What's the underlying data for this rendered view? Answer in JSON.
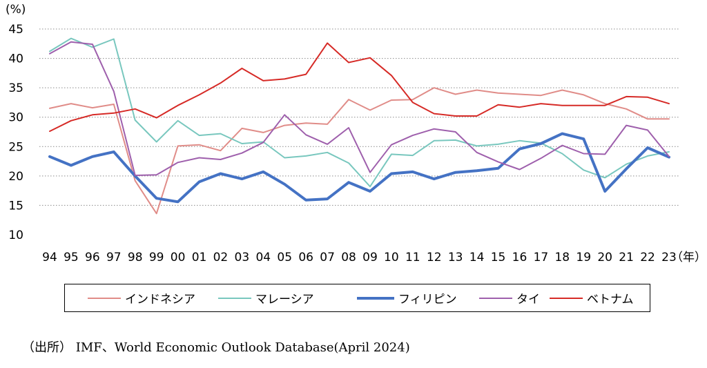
{
  "chart_data": {
    "type": "line",
    "y_unit_label": "(%)",
    "x_unit_label": "（年）",
    "ylim": [
      10,
      45
    ],
    "y_ticks": [
      10,
      15,
      20,
      25,
      30,
      35,
      40,
      45
    ],
    "grid": "horizontal dotted",
    "legend_position": "bottom",
    "categories": [
      "94",
      "95",
      "96",
      "97",
      "98",
      "99",
      "00",
      "01",
      "02",
      "03",
      "04",
      "05",
      "06",
      "07",
      "08",
      "09",
      "10",
      "11",
      "12",
      "13",
      "14",
      "15",
      "16",
      "17",
      "18",
      "19",
      "20",
      "21",
      "22",
      "23"
    ],
    "series": [
      {
        "name": "インドネシア",
        "color": "#e08c88",
        "values": [
          31.5,
          32.3,
          31.6,
          32.2,
          19.2,
          13.6,
          25.1,
          25.3,
          24.3,
          28.1,
          27.4,
          28.6,
          29.0,
          28.8,
          33.0,
          31.2,
          32.9,
          33.0,
          35.0,
          33.9,
          34.6,
          34.1,
          33.9,
          33.7,
          34.6,
          33.8,
          32.3,
          31.4,
          29.7,
          29.7
        ]
      },
      {
        "name": "マレーシア",
        "color": "#78c7be",
        "values": [
          41.2,
          43.4,
          41.9,
          43.3,
          29.5,
          25.8,
          29.4,
          26.9,
          27.2,
          25.5,
          25.8,
          23.1,
          23.4,
          24.0,
          22.2,
          18.2,
          23.7,
          23.5,
          26.0,
          26.1,
          25.1,
          25.4,
          26.0,
          25.6,
          23.8,
          21.0,
          19.7,
          22.0,
          23.4,
          24.1
        ]
      },
      {
        "name": "フィリピン",
        "color": "#4472c4",
        "values": [
          23.3,
          21.8,
          23.3,
          24.1,
          20.0,
          16.2,
          15.6,
          19.0,
          20.4,
          19.5,
          20.7,
          18.6,
          15.9,
          16.1,
          18.9,
          17.4,
          20.4,
          20.7,
          19.5,
          20.6,
          20.9,
          21.3,
          24.6,
          25.5,
          27.2,
          26.3,
          17.4,
          21.2,
          24.8,
          23.2
        ]
      },
      {
        "name": "タイ",
        "color": "#9e5fac",
        "values": [
          40.8,
          42.8,
          42.4,
          34.4,
          20.1,
          20.2,
          22.3,
          23.1,
          22.8,
          23.9,
          25.7,
          30.4,
          27.0,
          25.4,
          28.2,
          20.6,
          25.3,
          26.9,
          28.0,
          27.5,
          24.0,
          22.4,
          21.1,
          23.0,
          25.2,
          23.8,
          23.7,
          28.6,
          27.8,
          23.3
        ]
      },
      {
        "name": "ベトナム",
        "color": "#d62a26",
        "values": [
          27.6,
          29.4,
          30.4,
          30.7,
          31.4,
          29.9,
          32.0,
          33.8,
          35.8,
          38.3,
          36.2,
          36.5,
          37.3,
          42.6,
          39.3,
          40.1,
          37.1,
          32.5,
          30.6,
          30.2,
          30.2,
          32.1,
          31.7,
          32.3,
          32.0,
          32.0,
          32.0,
          33.5,
          33.4,
          32.3
        ]
      }
    ]
  },
  "source": "（出所） IMF、World Economic Outlook Database(April 2024)"
}
